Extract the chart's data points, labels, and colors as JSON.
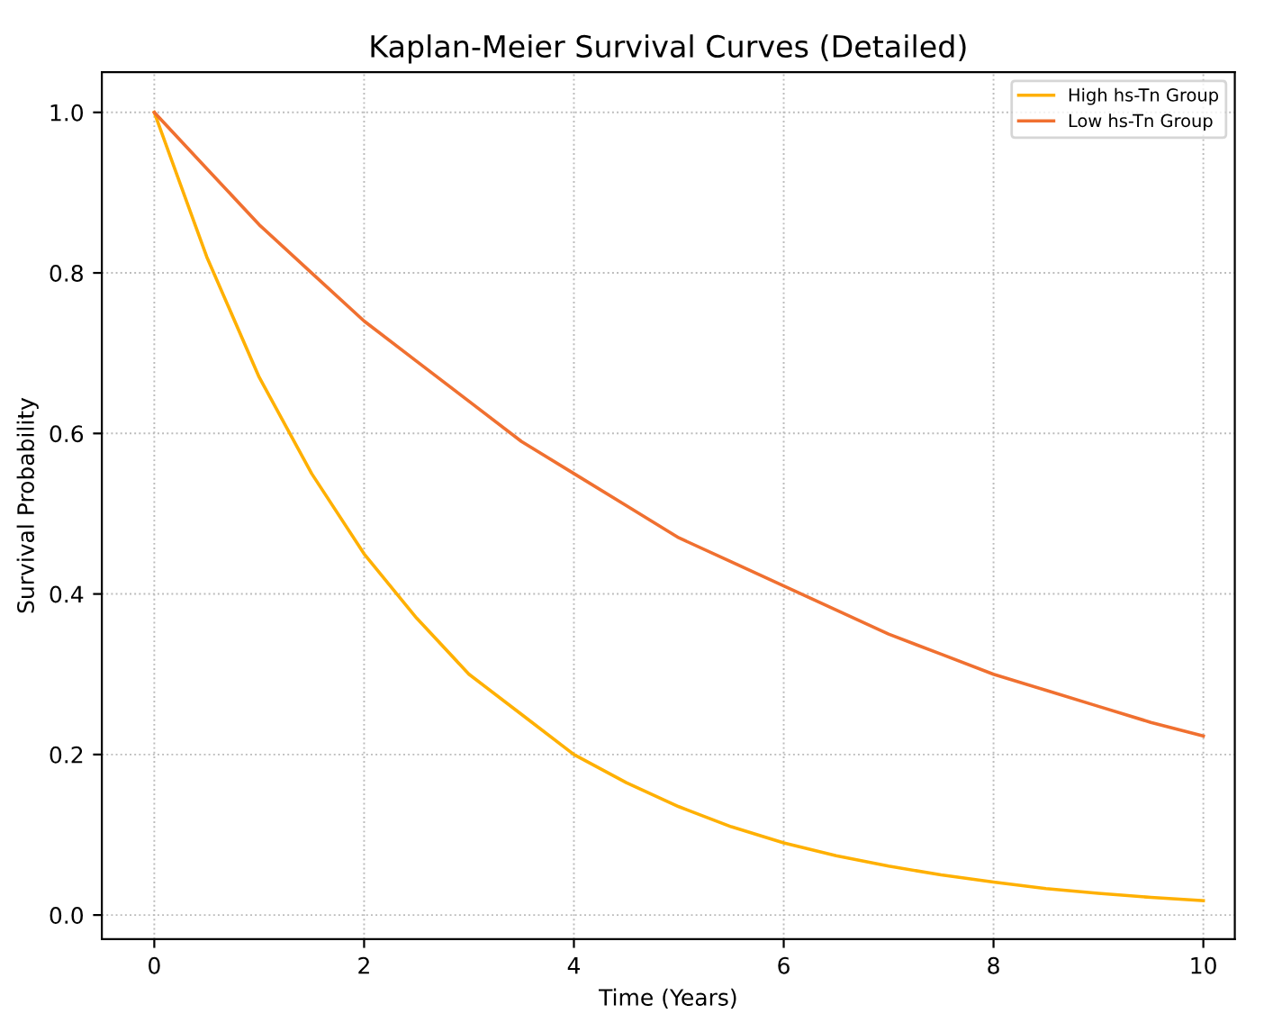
{
  "chart_data": {
    "type": "line",
    "title": "Kaplan-Meier Survival Curves (Detailed)",
    "xlabel": "Time (Years)",
    "ylabel": "Survival Probability",
    "x": [
      0,
      0.5,
      1,
      1.5,
      2,
      2.5,
      3,
      3.5,
      4,
      4.5,
      5,
      5.5,
      6,
      6.5,
      7,
      7.5,
      8,
      8.5,
      9,
      9.5,
      10
    ],
    "series": [
      {
        "name": "High hs-Tn Group",
        "color": "#ffb000",
        "values": [
          1.0,
          0.82,
          0.67,
          0.55,
          0.45,
          0.37,
          0.3,
          0.25,
          0.2,
          0.165,
          0.135,
          0.11,
          0.09,
          0.074,
          0.061,
          0.05,
          0.041,
          0.033,
          0.027,
          0.022,
          0.018
        ]
      },
      {
        "name": "Low hs-Tn Group",
        "color": "#f07030",
        "values": [
          1.0,
          0.93,
          0.86,
          0.8,
          0.74,
          0.69,
          0.64,
          0.59,
          0.55,
          0.51,
          0.47,
          0.44,
          0.41,
          0.38,
          0.35,
          0.325,
          0.3,
          0.28,
          0.26,
          0.24,
          0.223
        ]
      }
    ],
    "xlim": [
      -0.5,
      10.3
    ],
    "ylim": [
      -0.03,
      1.05
    ],
    "xticks": [
      0,
      2,
      4,
      6,
      8,
      10
    ],
    "yticks": [
      {
        "value": 0,
        "label": "0.0"
      },
      {
        "value": 0.2,
        "label": "0.2"
      },
      {
        "value": 0.4,
        "label": "0.4"
      },
      {
        "value": 0.6,
        "label": "0.6"
      },
      {
        "value": 0.8,
        "label": "0.8"
      },
      {
        "value": 1.0,
        "label": "1.0"
      }
    ],
    "grid": true,
    "legend": "top right",
    "marker": "none",
    "line_style": "solid"
  }
}
